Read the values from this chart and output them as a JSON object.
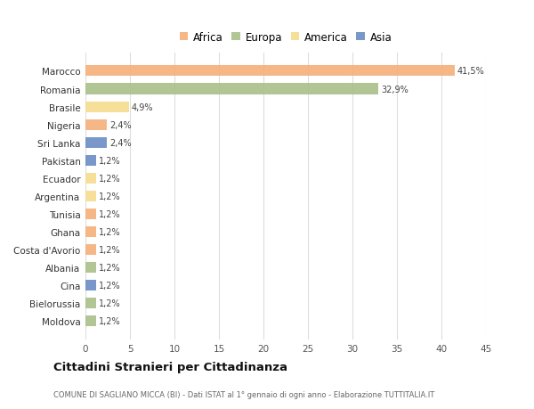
{
  "countries": [
    "Marocco",
    "Romania",
    "Brasile",
    "Nigeria",
    "Sri Lanka",
    "Pakistan",
    "Ecuador",
    "Argentina",
    "Tunisia",
    "Ghana",
    "Costa d'Avorio",
    "Albania",
    "Cina",
    "Bielorussia",
    "Moldova"
  ],
  "values": [
    41.5,
    32.9,
    4.9,
    2.4,
    2.4,
    1.2,
    1.2,
    1.2,
    1.2,
    1.2,
    1.2,
    1.2,
    1.2,
    1.2,
    1.2
  ],
  "labels": [
    "41,5%",
    "32,9%",
    "4,9%",
    "2,4%",
    "2,4%",
    "1,2%",
    "1,2%",
    "1,2%",
    "1,2%",
    "1,2%",
    "1,2%",
    "1,2%",
    "1,2%",
    "1,2%",
    "1,2%"
  ],
  "continents": [
    "Africa",
    "Europa",
    "America",
    "Africa",
    "Asia",
    "Asia",
    "America",
    "America",
    "Africa",
    "Africa",
    "Africa",
    "Europa",
    "Asia",
    "Europa",
    "Europa"
  ],
  "colors": {
    "Africa": "#F5B07A",
    "Europa": "#AABF8A",
    "America": "#F5DC8E",
    "Asia": "#6B8DC4"
  },
  "legend_order": [
    "Africa",
    "Europa",
    "America",
    "Asia"
  ],
  "title": "Cittadini Stranieri per Cittadinanza",
  "subtitle": "COMUNE DI SAGLIANO MICCA (BI) - Dati ISTAT al 1° gennaio di ogni anno - Elaborazione TUTTITALIA.IT",
  "xlim": [
    0,
    45
  ],
  "xticks": [
    0,
    5,
    10,
    15,
    20,
    25,
    30,
    35,
    40,
    45
  ],
  "bg_color": "#ffffff",
  "plot_bg_color": "#ffffff",
  "grid_color": "#dddddd"
}
